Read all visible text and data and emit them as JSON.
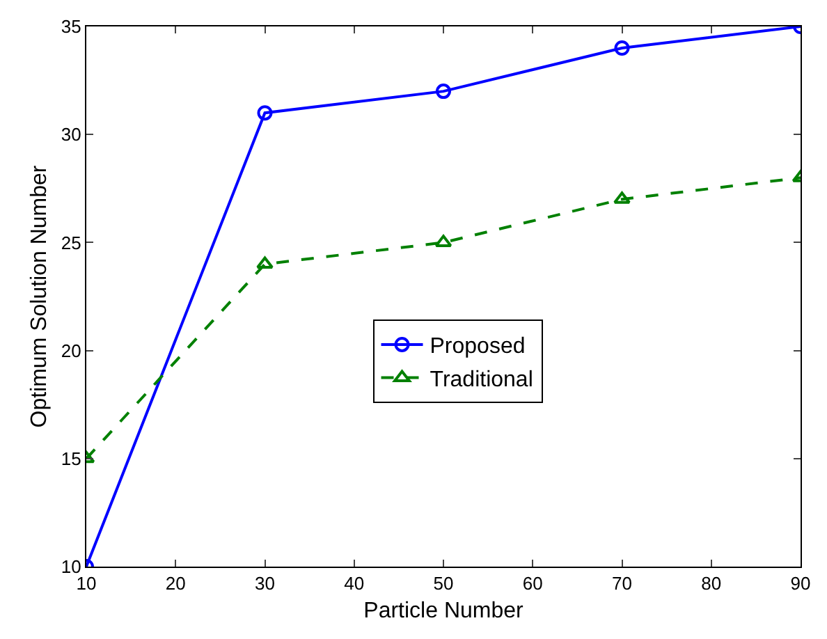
{
  "chart_data": {
    "type": "line",
    "xlabel": "Particle Number",
    "ylabel": "Optimum Solution Number",
    "x": [
      10,
      30,
      50,
      70,
      90
    ],
    "series": [
      {
        "name": "Proposed",
        "color": "#0000ff",
        "values": [
          10,
          31,
          32,
          34,
          35
        ],
        "marker": "circle",
        "line_style": "solid"
      },
      {
        "name": "Traditional",
        "color": "#008000",
        "values": [
          15,
          24,
          25,
          27,
          28
        ],
        "marker": "triangle",
        "line_style": "dashed"
      }
    ],
    "xlim": [
      10,
      90
    ],
    "xticks": [
      10,
      20,
      30,
      40,
      50,
      60,
      70,
      80,
      90
    ],
    "ylim": [
      10,
      35
    ],
    "yticks": [
      10,
      15,
      20,
      25,
      30,
      35
    ],
    "grid": false,
    "legend": "center"
  }
}
